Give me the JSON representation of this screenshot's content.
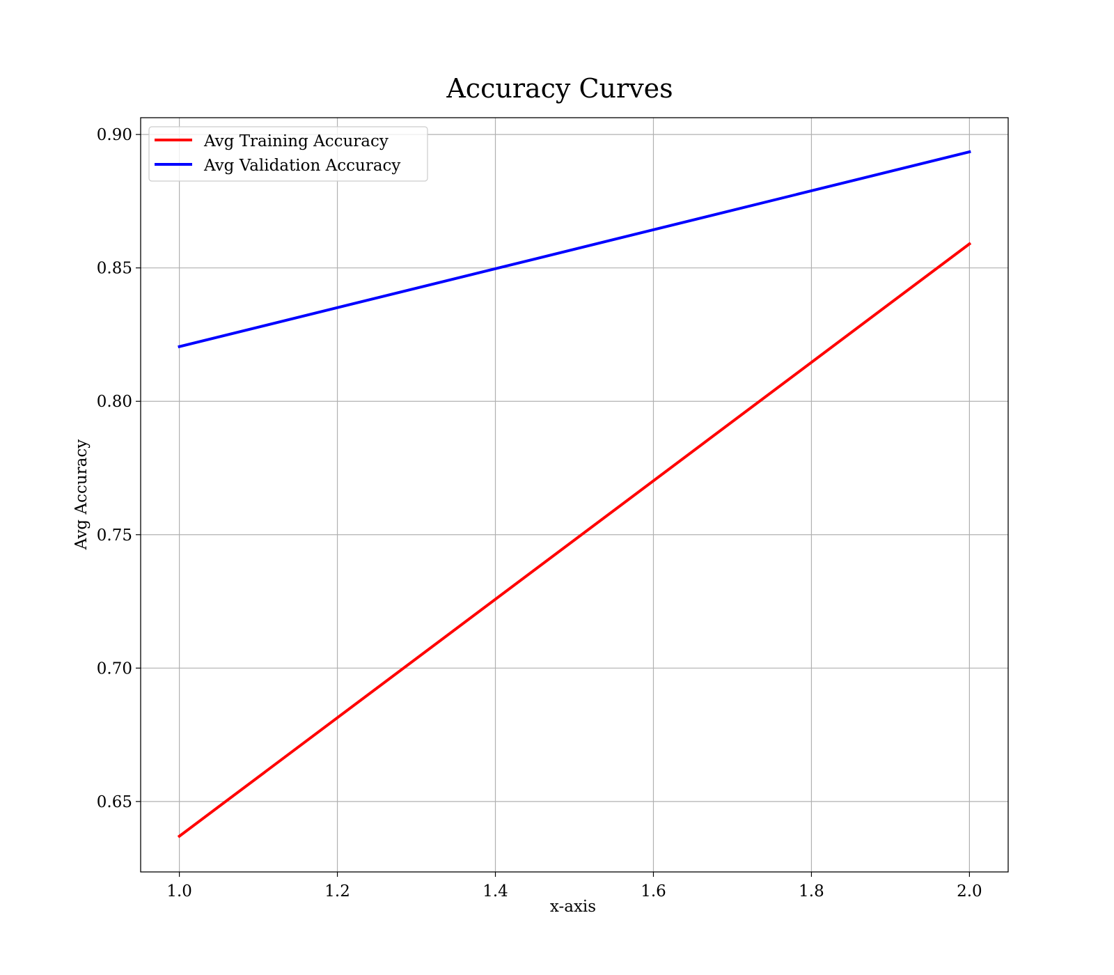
{
  "chart_data": {
    "type": "line",
    "title": "Accuracy Curves",
    "xlabel": "x-axis",
    "ylabel": "Avg Accuracy",
    "x": [
      1.0,
      2.0
    ],
    "xlim": [
      0.951,
      2.049
    ],
    "ylim": [
      0.6236,
      0.9063
    ],
    "xticks": [
      1.0,
      1.2,
      1.4,
      1.6,
      1.8,
      2.0
    ],
    "xtick_labels": [
      "1.0",
      "1.2",
      "1.4",
      "1.6",
      "1.8",
      "2.0"
    ],
    "yticks": [
      0.65,
      0.7,
      0.75,
      0.8,
      0.85,
      0.9
    ],
    "ytick_labels": [
      "0.65",
      "0.70",
      "0.75",
      "0.80",
      "0.85",
      "0.90"
    ],
    "grid": true,
    "legend_position": "top-left",
    "series": [
      {
        "name": "Avg Training Accuracy",
        "color": "#ff0000",
        "values": [
          0.637,
          0.859
        ]
      },
      {
        "name": "Avg Validation Accuracy",
        "color": "#0000ff",
        "values": [
          0.8205,
          0.8935
        ]
      }
    ]
  }
}
